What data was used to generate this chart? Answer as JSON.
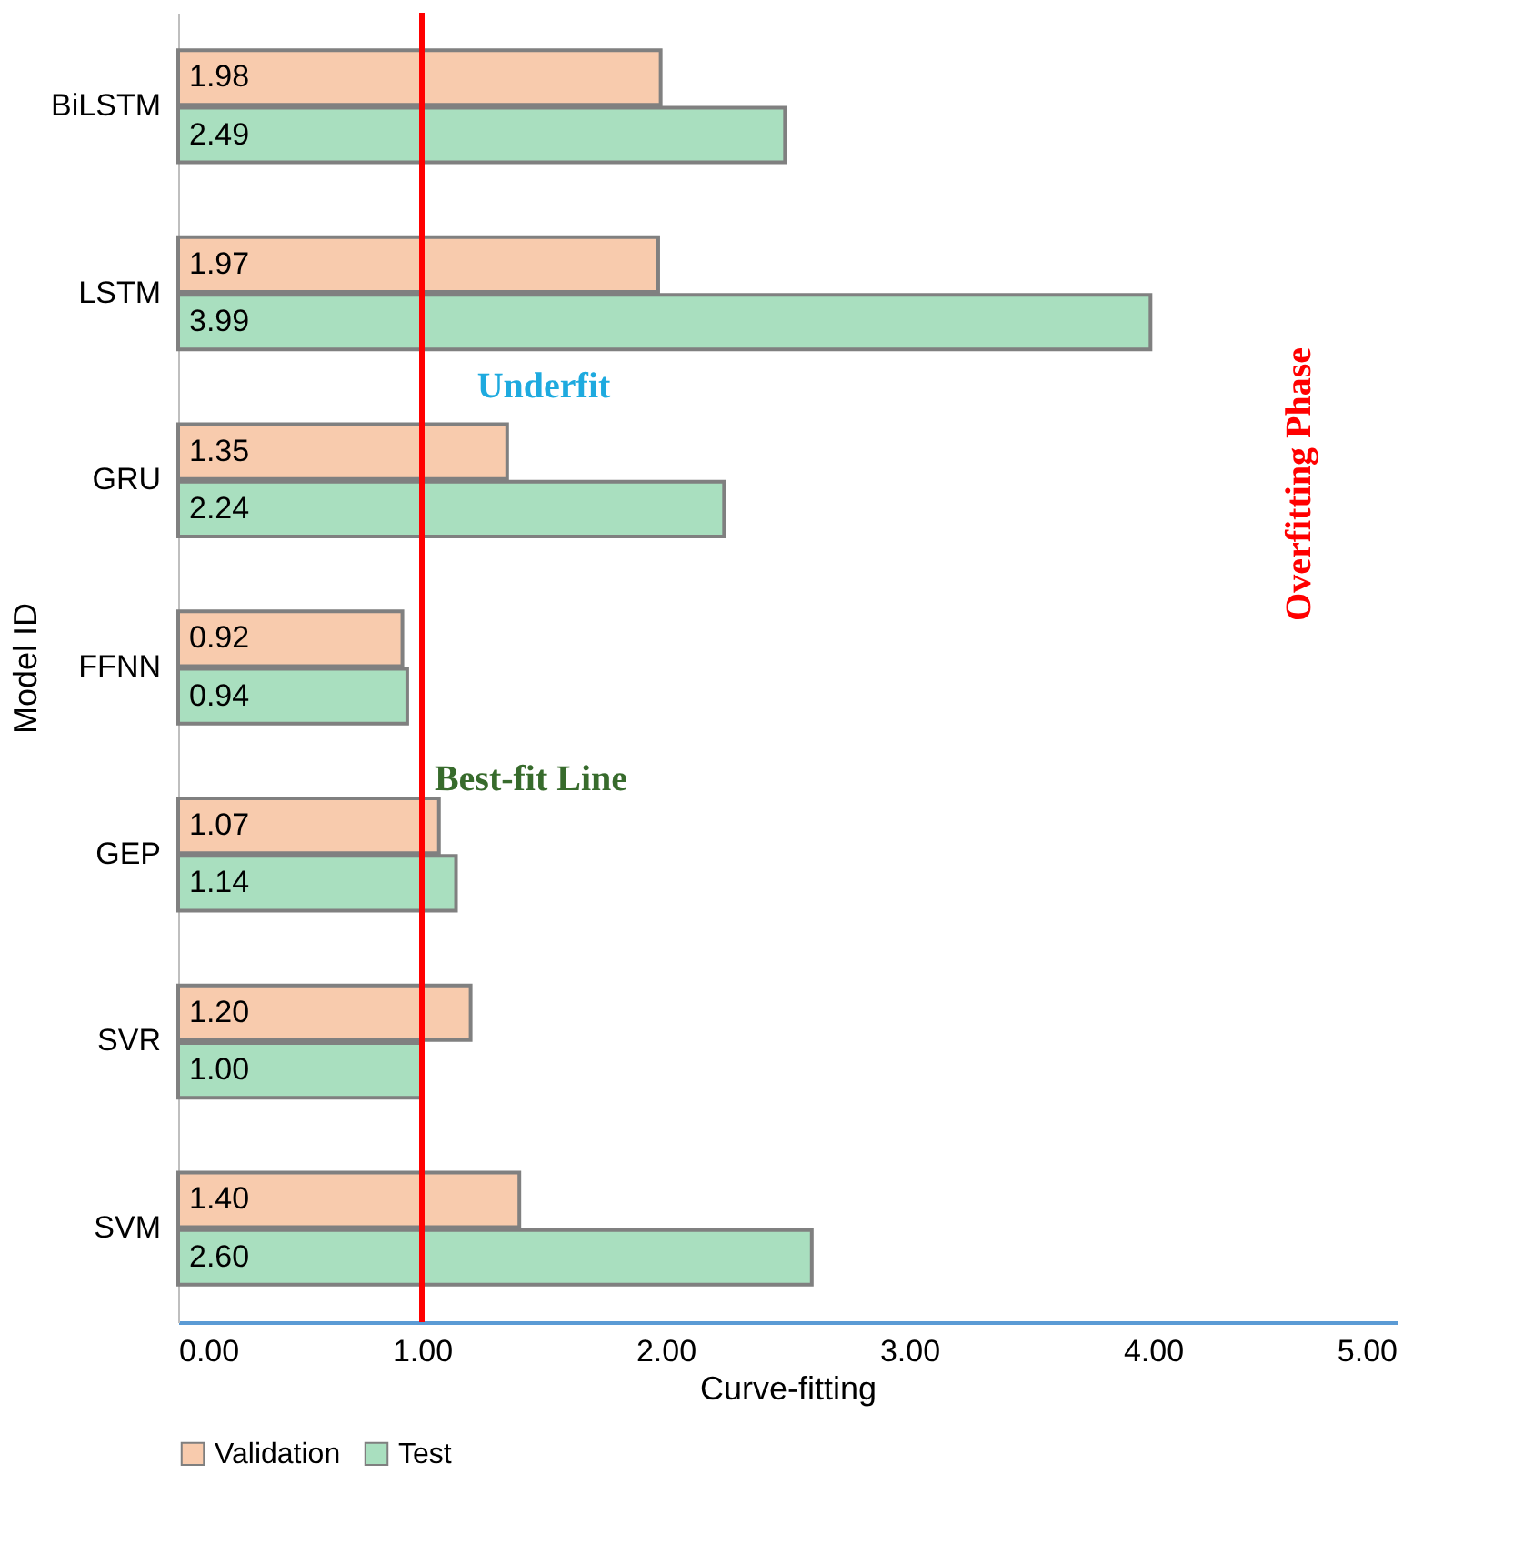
{
  "chart_data": {
    "type": "bar",
    "orientation": "horizontal",
    "xlabel": "Curve-fitting",
    "ylabel": "Model ID",
    "categories": [
      "BiLSTM",
      "LSTM",
      "GRU",
      "FFNN",
      "GEP",
      "SVR",
      "SVM"
    ],
    "series": [
      {
        "name": "Validation",
        "color": "#f8cbad",
        "values": [
          1.98,
          1.97,
          1.35,
          0.92,
          1.07,
          1.2,
          1.4
        ],
        "value_labels": [
          "1.98",
          "1.97",
          "1.35",
          "0.92",
          "1.07",
          "1.20",
          "1.40"
        ]
      },
      {
        "name": "Test",
        "color": "#a9dfbf",
        "values": [
          2.49,
          3.99,
          2.24,
          0.94,
          1.14,
          1.0,
          2.6
        ],
        "value_labels": [
          "2.49",
          "3.99",
          "2.24",
          "0.94",
          "1.14",
          "1.00",
          "2.60"
        ]
      }
    ],
    "xlim": [
      0,
      5
    ],
    "xticks": [
      {
        "value": 0,
        "label": "0.00"
      },
      {
        "value": 1,
        "label": "1.00"
      },
      {
        "value": 2,
        "label": "2.00"
      },
      {
        "value": 3,
        "label": "3.00"
      },
      {
        "value": 4,
        "label": "4.00"
      },
      {
        "value": 5,
        "label": "5.00"
      }
    ],
    "ref_lines": [
      {
        "axis": "x",
        "value": 1,
        "label": "Best-fit Line",
        "color": "#ff0000"
      }
    ],
    "annotations": [
      "Underfit",
      "Overfitting Phase"
    ],
    "grid": false,
    "legend": "bottom left"
  }
}
